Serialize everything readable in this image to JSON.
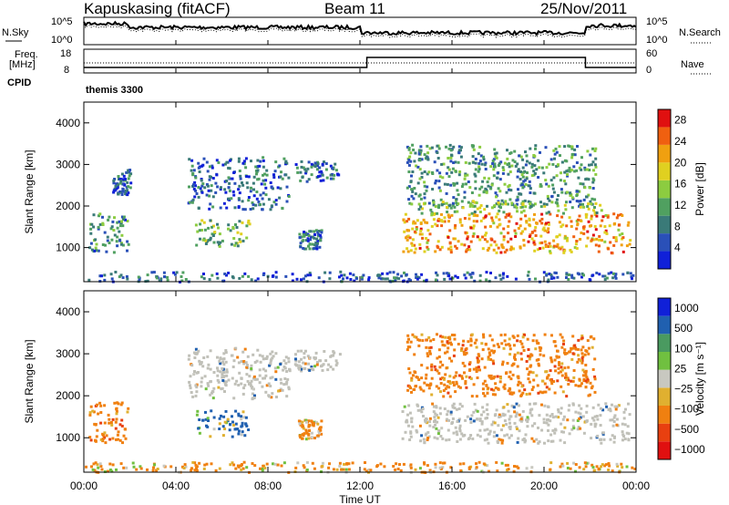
{
  "header": {
    "station": "Kapuskasing (fitACF)",
    "beam": "Beam 11",
    "date": "25/Nov/2011"
  },
  "aux_panels": {
    "nsky_label": "N.Sky",
    "nsearch_label": "N.Search",
    "freq_label_line1": "Freq.",
    "freq_label_line2": "[MHz]",
    "nave_label": "Nave",
    "cpid_label": "CPID",
    "cpid_value": "themis 3300",
    "noise_ticks": [
      "10^5",
      "10^0"
    ],
    "freq_ticks": [
      "18",
      "8"
    ],
    "nave_ticks": [
      "60",
      "0"
    ]
  },
  "colors": {
    "power_scale": [
      "#1020d8",
      "#2a50b8",
      "#3a7a78",
      "#50a060",
      "#8ccc40",
      "#e0d020",
      "#f0a010",
      "#f06010",
      "#e01010"
    ],
    "velocity_scale": [
      "#1020d8",
      "#2060b0",
      "#4a9a60",
      "#70c040",
      "#c8c8c0",
      "#e0b030",
      "#f08010",
      "#e84010",
      "#e01010"
    ],
    "ground_scatter": "#c0c0b8"
  },
  "chart_data": [
    {
      "type": "heatmap",
      "title": "Power",
      "ylabel": "Slant Range [km]",
      "xlabel": "Time UT",
      "x_ticks": [
        "00:00",
        "04:00",
        "08:00",
        "12:00",
        "16:00",
        "20:00",
        "00:00"
      ],
      "y_ticks": [
        1000,
        2000,
        3000,
        4000
      ],
      "ylim": [
        180,
        4500
      ],
      "colorbar": {
        "label": "Power [dB]",
        "ticks": [
          4,
          8,
          12,
          16,
          20,
          24,
          28
        ],
        "range": [
          0,
          30
        ]
      },
      "echo_regions": [
        {
          "t0": 0.2,
          "t1": 1.9,
          "r0": 900,
          "r1": 1900,
          "db": 9
        },
        {
          "t0": 1.2,
          "t1": 2.0,
          "r0": 2300,
          "r1": 2900,
          "db": 5
        },
        {
          "t0": 4.5,
          "t1": 8.9,
          "r0": 1950,
          "r1": 3200,
          "db": 6
        },
        {
          "t0": 4.8,
          "t1": 7.2,
          "r0": 1050,
          "r1": 1700,
          "db": 13
        },
        {
          "t0": 9.1,
          "t1": 11.1,
          "r0": 2600,
          "r1": 3100,
          "db": 6
        },
        {
          "t0": 9.3,
          "t1": 10.3,
          "r0": 1000,
          "r1": 1450,
          "db": 7
        },
        {
          "t0": 13.8,
          "t1": 23.7,
          "r0": 900,
          "r1": 1850,
          "db": 22
        },
        {
          "t0": 14.0,
          "t1": 22.2,
          "r0": 2000,
          "r1": 3500,
          "db": 10
        },
        {
          "t0": 14.5,
          "t1": 22.5,
          "r0": 1850,
          "r1": 2150,
          "db": 14
        },
        {
          "t0": 0.0,
          "t1": 24.0,
          "r0": 200,
          "r1": 450,
          "db": 6
        }
      ]
    },
    {
      "type": "heatmap",
      "title": "Velocity",
      "ylabel": "Slant Range [km]",
      "xlabel": "Time UT",
      "x_ticks": [
        "00:00",
        "04:00",
        "08:00",
        "12:00",
        "16:00",
        "20:00",
        "00:00"
      ],
      "y_ticks": [
        1000,
        2000,
        3000,
        4000
      ],
      "ylim": [
        180,
        4500
      ],
      "colorbar": {
        "label": "Velocity [m s⁻¹]",
        "ticks": [
          "1000",
          "500",
          "100",
          "25",
          "−25",
          "−100",
          "−500",
          "−1000"
        ]
      },
      "echo_regions": [
        {
          "t0": 0.2,
          "t1": 1.9,
          "r0": 900,
          "r1": 1900,
          "vel": -300
        },
        {
          "t0": 4.5,
          "t1": 8.9,
          "r0": 1950,
          "r1": 3200,
          "vel": 0
        },
        {
          "t0": 4.8,
          "t1": 7.2,
          "r0": 1050,
          "r1": 1700,
          "vel": 150
        },
        {
          "t0": 9.1,
          "t1": 11.1,
          "r0": 2600,
          "r1": 3100,
          "vel": 0
        },
        {
          "t0": 9.3,
          "t1": 10.3,
          "r0": 1000,
          "r1": 1450,
          "vel": -200
        },
        {
          "t0": 13.8,
          "t1": 23.7,
          "r0": 900,
          "r1": 1850,
          "vel": 0
        },
        {
          "t0": 14.0,
          "t1": 22.2,
          "r0": 2000,
          "r1": 3500,
          "vel": -300
        },
        {
          "t0": 0.0,
          "t1": 24.0,
          "r0": 200,
          "r1": 450,
          "vel": -150
        }
      ]
    }
  ]
}
